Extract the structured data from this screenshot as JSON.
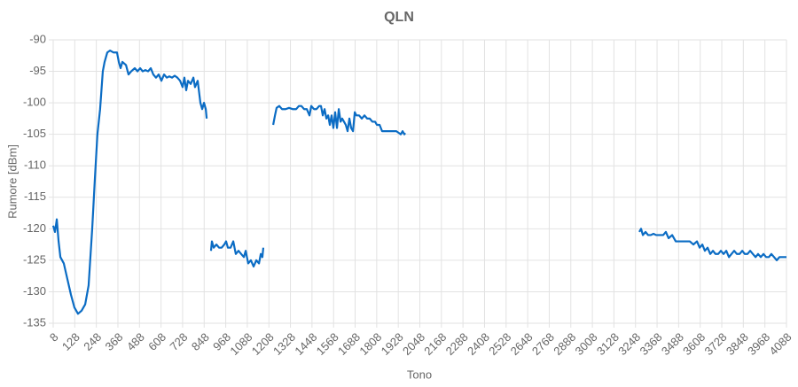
{
  "chart_data": {
    "type": "line",
    "title": "QLN",
    "x_label": "Tono",
    "y_label": "Rumore [dBm]",
    "x": [
      8,
      18,
      28,
      38,
      48,
      67,
      87,
      107,
      126,
      146,
      166,
      186,
      205,
      225,
      240,
      254,
      269,
      284,
      294,
      309,
      324,
      343,
      363,
      373,
      383,
      393,
      413,
      427,
      442,
      462,
      477,
      492,
      506,
      521,
      536,
      551,
      565,
      580,
      595,
      610,
      625,
      640,
      654,
      669,
      684,
      699,
      714,
      728,
      738,
      748,
      758,
      773,
      788,
      797,
      812,
      827,
      837,
      847,
      857,
      862,
      875,
      886,
      891,
      901,
      916,
      931,
      945,
      960,
      970,
      980,
      995,
      1010,
      1024,
      1039,
      1054,
      1069,
      1079,
      1093,
      1108,
      1123,
      1138,
      1153,
      1163,
      1172,
      1177,
      1200,
      1232,
      1242,
      1251,
      1266,
      1281,
      1301,
      1320,
      1340,
      1360,
      1375,
      1389,
      1404,
      1419,
      1434,
      1444,
      1459,
      1473,
      1488,
      1498,
      1508,
      1518,
      1528,
      1538,
      1547,
      1557,
      1567,
      1577,
      1587,
      1597,
      1607,
      1616,
      1626,
      1636,
      1646,
      1656,
      1666,
      1676,
      1686,
      1695,
      1710,
      1725,
      1740,
      1755,
      1769,
      1784,
      1799,
      1809,
      1824,
      1838,
      1853,
      1868,
      1883,
      1903,
      1917,
      1932,
      1942,
      1952,
      1962,
      1967,
      2100,
      3269,
      3279,
      3289,
      3304,
      3318,
      3333,
      3348,
      3363,
      3383,
      3402,
      3417,
      3432,
      3452,
      3472,
      3491,
      3511,
      3531,
      3550,
      3570,
      3590,
      3605,
      3620,
      3634,
      3649,
      3664,
      3679,
      3693,
      3708,
      3723,
      3738,
      3753,
      3768,
      3782,
      3797,
      3812,
      3827,
      3842,
      3856,
      3871,
      3886,
      3901,
      3916,
      3930,
      3945,
      3960,
      3975,
      3990,
      4004,
      4019,
      4034,
      4049,
      4064,
      4078,
      4088
    ],
    "series": [
      {
        "name": "QLN",
        "color": "#0b6cc4",
        "values": [
          -119.5,
          -120.5,
          -118.5,
          -122,
          -124.5,
          -125.5,
          -128,
          -130.5,
          -132.5,
          -133.5,
          -133,
          -132,
          -129,
          -120,
          -112,
          -105,
          -101,
          -95,
          -93.5,
          -92,
          -91.7,
          -92,
          -92,
          -93.5,
          -94.5,
          -93.5,
          -94,
          -95.5,
          -95,
          -94.5,
          -95,
          -94.5,
          -95,
          -94.8,
          -95,
          -94.5,
          -95.5,
          -96,
          -95.5,
          -96.5,
          -95.5,
          -96,
          -95.8,
          -96,
          -95.7,
          -96,
          -96.5,
          -97.5,
          -96,
          -98,
          -96.5,
          -97,
          -96,
          -97.5,
          -96.5,
          -100,
          -101,
          -100,
          -101,
          -102.5,
          null,
          -123.5,
          -122,
          -123,
          -122.5,
          -123,
          -123,
          -122.5,
          -122,
          -123,
          -123,
          -122,
          -124,
          -123.5,
          -124,
          -124.5,
          -123.5,
          -125.5,
          -125,
          -126,
          -125,
          -125.5,
          -124,
          -124.5,
          -123,
          null,
          -103.5,
          -102,
          -100.8,
          -100.5,
          -101,
          -101,
          -100.8,
          -101,
          -101,
          -100.5,
          -100.5,
          -101,
          -101,
          -102,
          -100.5,
          -101,
          -101,
          -100.5,
          -100.5,
          -102,
          -101,
          -102.5,
          -102,
          -103.5,
          -102,
          -104,
          -101.5,
          -104,
          -101,
          -103,
          -102.5,
          -103,
          -103.5,
          -104.5,
          -102.5,
          -104,
          -104.5,
          -101.5,
          -102,
          -102,
          -102.5,
          -102,
          -102.5,
          -102.5,
          -103,
          -103,
          -103.5,
          -103.5,
          -104.5,
          -104.5,
          -104.5,
          -104.5,
          -104.5,
          -104.5,
          -104.8,
          -105,
          -104.5,
          -105,
          -104.8,
          null,
          -120.5,
          -120,
          -121,
          -120.5,
          -121,
          -121,
          -120.8,
          -121,
          -121,
          -121,
          -120.5,
          -121.5,
          -121,
          -122,
          -122,
          -122,
          -122,
          -122,
          -122.5,
          -122,
          -123,
          -122.5,
          -123.5,
          -123,
          -124,
          -123.5,
          -124,
          -124,
          -123.5,
          -124,
          -123.5,
          -124.5,
          -124,
          -123.5,
          -124,
          -124,
          -123.5,
          -124,
          -124,
          -123.5,
          -124,
          -124.5,
          -124,
          -124.5,
          -124,
          -124.5,
          -124.5,
          -124,
          -124.5,
          -125,
          -124.5,
          -124.5,
          -124.5,
          -124.5
        ]
      }
    ],
    "xlim": [
      8,
      4088
    ],
    "xticks": [
      8,
      128,
      248,
      368,
      488,
      608,
      728,
      848,
      968,
      1088,
      1208,
      1328,
      1448,
      1568,
      1688,
      1808,
      1928,
      2048,
      2168,
      2288,
      2408,
      2528,
      2648,
      2768,
      2888,
      3008,
      3128,
      3248,
      3368,
      3488,
      3608,
      3728,
      3848,
      3968,
      4088
    ],
    "ylim": [
      -135,
      -90
    ],
    "yticks": [
      -135,
      -130,
      -125,
      -120,
      -115,
      -110,
      -105,
      -100,
      -95,
      -90
    ],
    "grid": true
  }
}
